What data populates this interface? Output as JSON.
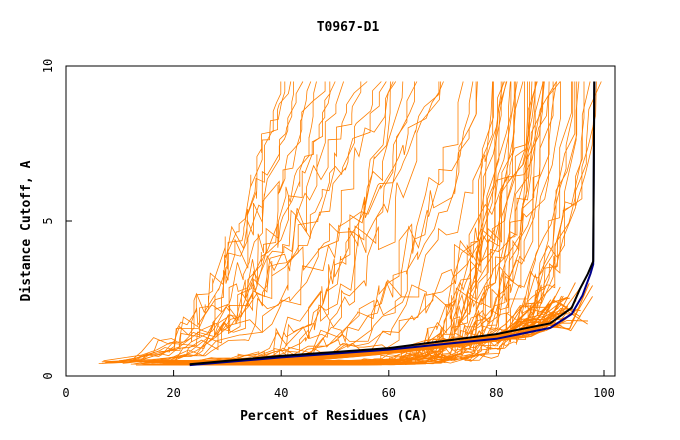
{
  "chart_data": {
    "type": "line",
    "title": "T0967-D1",
    "xlabel": "Percent of Residues (CA)",
    "ylabel": "Distance Cutoff, A",
    "xlim": [
      0,
      100
    ],
    "ylim": [
      0,
      10
    ],
    "xticks": [
      "0",
      "20",
      "40",
      "60",
      "80",
      "100"
    ],
    "yticks": [
      "0",
      "5",
      "10"
    ],
    "grid": false,
    "colors": {
      "models": "#ff7f00",
      "highlight_blue": "#00008b",
      "highlight_black": "#000000"
    },
    "series_groups": {
      "models_orange": {
        "color": "#ff7f00",
        "count": 70,
        "start_x_range": [
          6,
          30
        ],
        "end_x_range": [
          36,
          100
        ],
        "start_y": 0.35,
        "note": "many orange model curves, each rising from ~0.35 A at low residue percent toward 9.5 A"
      }
    },
    "series": [
      {
        "color": "#00008b",
        "points": [
          [
            23,
            0.35
          ],
          [
            40,
            0.6
          ],
          [
            60,
            0.85
          ],
          [
            80,
            1.2
          ],
          [
            90,
            1.55
          ],
          [
            94,
            2.0
          ],
          [
            96,
            2.6
          ],
          [
            97.5,
            3.3
          ],
          [
            98,
            3.6
          ],
          [
            98.2,
            9.5
          ]
        ]
      },
      {
        "color": "#000000",
        "points": [
          [
            23,
            0.38
          ],
          [
            40,
            0.65
          ],
          [
            60,
            0.9
          ],
          [
            80,
            1.35
          ],
          [
            90,
            1.7
          ],
          [
            94,
            2.2
          ],
          [
            95.5,
            2.8
          ],
          [
            97,
            3.3
          ],
          [
            98,
            3.7
          ],
          [
            98.2,
            9.5
          ]
        ]
      }
    ]
  }
}
